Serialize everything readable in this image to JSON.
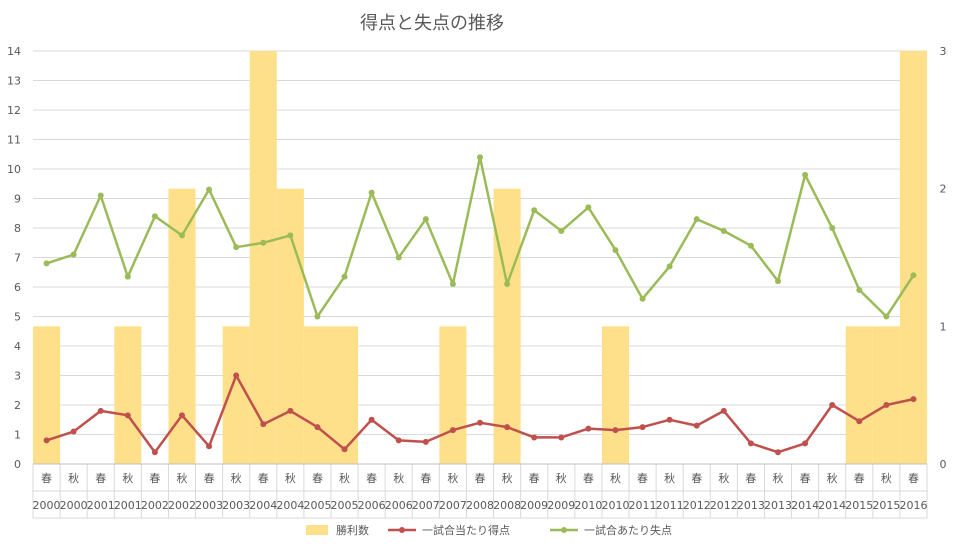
{
  "chart_data": {
    "type": "bar-line-combo",
    "title": "得点と失点の推移",
    "season_labels": [
      "春",
      "秋",
      "春",
      "秋",
      "春",
      "秋",
      "春",
      "秋",
      "春",
      "秋",
      "春",
      "秋",
      "春",
      "秋",
      "春",
      "秋",
      "春",
      "秋",
      "春",
      "秋",
      "春",
      "秋",
      "春",
      "秋",
      "春",
      "秋",
      "春",
      "秋",
      "春",
      "秋",
      "春",
      "秋",
      "春"
    ],
    "year_labels": [
      "2000",
      "2000",
      "2001",
      "2001",
      "2002",
      "2002",
      "2003",
      "2003",
      "2004",
      "2004",
      "2005",
      "2005",
      "2006",
      "2006",
      "2007",
      "2007",
      "2008",
      "2008",
      "2009",
      "2009",
      "2010",
      "2010",
      "2011",
      "2011",
      "2012",
      "2012",
      "2013",
      "2013",
      "2014",
      "2014",
      "2015",
      "2015",
      "2016"
    ],
    "left_axis": {
      "min": 0,
      "max": 14,
      "ticks": [
        "0",
        "1",
        "2",
        "3",
        "4",
        "5",
        "6",
        "7",
        "8",
        "9",
        "10",
        "11",
        "12",
        "13",
        "14"
      ]
    },
    "right_axis": {
      "min": 0,
      "max": 3,
      "ticks": [
        "0",
        "1",
        "2",
        "3"
      ]
    },
    "grid": true,
    "legend_position": "bottom",
    "series": [
      {
        "name": "勝利数",
        "kind": "bar",
        "axis": "right",
        "color": "#FFE08A",
        "values": [
          1,
          0,
          0,
          1,
          0,
          2,
          0,
          1,
          3,
          2,
          1,
          1,
          0,
          0,
          0,
          1,
          0,
          2,
          0,
          0,
          0,
          1,
          0,
          0,
          0,
          0,
          0,
          0,
          0,
          0,
          1,
          1,
          3
        ]
      },
      {
        "name": "一試合当たり得点",
        "kind": "line",
        "axis": "left",
        "color": "#C0504D",
        "values": [
          0.8,
          1.1,
          1.8,
          1.65,
          0.4,
          1.65,
          0.6,
          3.0,
          1.35,
          1.8,
          1.25,
          0.5,
          1.5,
          0.8,
          0.75,
          1.15,
          1.4,
          1.25,
          0.9,
          0.9,
          1.2,
          1.15,
          1.25,
          1.5,
          1.3,
          1.8,
          0.7,
          0.4,
          0.7,
          2.0,
          1.45,
          2.0,
          2.2
        ]
      },
      {
        "name": "一試合あたり失点",
        "kind": "line",
        "axis": "left",
        "color": "#9BBB59",
        "values": [
          6.8,
          7.1,
          9.1,
          6.35,
          8.4,
          7.75,
          9.3,
          7.35,
          7.5,
          7.75,
          5.0,
          6.35,
          9.2,
          7.0,
          8.3,
          6.1,
          10.4,
          6.1,
          8.6,
          7.9,
          8.7,
          7.25,
          5.6,
          6.7,
          8.3,
          7.9,
          7.4,
          6.2,
          9.8,
          8.0,
          5.9,
          5.0,
          6.4
        ]
      }
    ]
  }
}
